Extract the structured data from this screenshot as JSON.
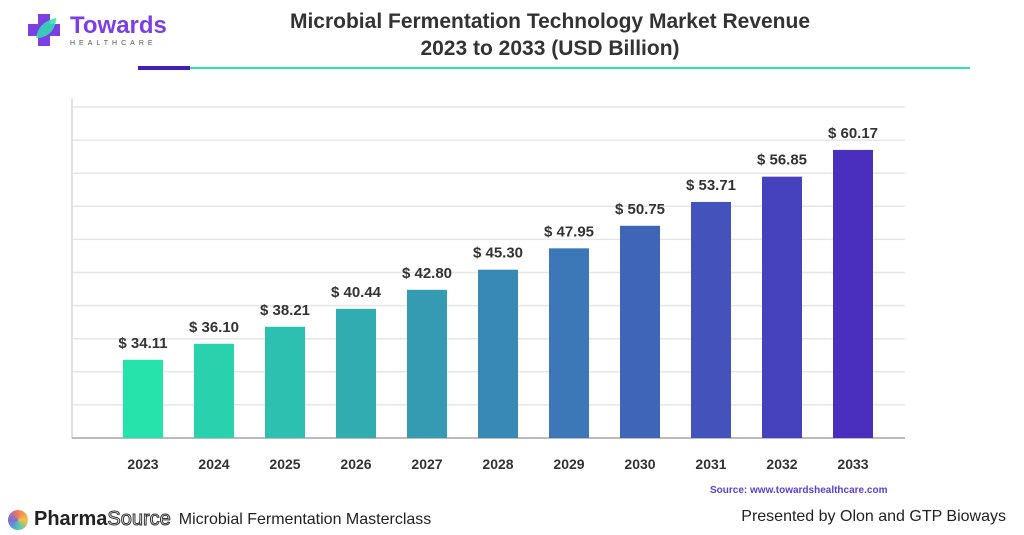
{
  "header": {
    "logo_name": "Towards",
    "logo_sub": "HEALTHCARE",
    "title_line1": "Microbial Fermentation Technology Market Revenue",
    "title_line2": "2023 to 2033 (USD Billion)"
  },
  "chart_data": {
    "type": "bar",
    "title": "Microbial Fermentation Technology Market Revenue 2023 to 2033 (USD Billion)",
    "categories": [
      "2023",
      "2024",
      "2025",
      "2026",
      "2027",
      "2028",
      "2029",
      "2030",
      "2031",
      "2032",
      "2033"
    ],
    "values": [
      34.11,
      36.1,
      38.21,
      40.44,
      42.8,
      45.3,
      47.95,
      50.75,
      53.71,
      56.85,
      60.17
    ],
    "labels": [
      "$ 34.11",
      "$ 36.10",
      "$ 38.21",
      "$ 40.44",
      "$ 42.80",
      "$ 45.30",
      "$ 47.95",
      "$ 50.75",
      "$ 53.71",
      "$ 56.85",
      "$ 60.17"
    ],
    "xlabel": "",
    "ylabel": "",
    "ylim": [
      24.4,
      65.5
    ],
    "grid": true,
    "colors": {
      "start": "#26e3ab",
      "end": "#4a2fbf"
    }
  },
  "source": "Source: www.towardshealthcare.com",
  "footer": {
    "brand_bold": "Pharma",
    "brand_outline": "Source",
    "event": "Microbial Fermentation Masterclass",
    "presented": "Presented by  Olon and GTP Bioways"
  }
}
